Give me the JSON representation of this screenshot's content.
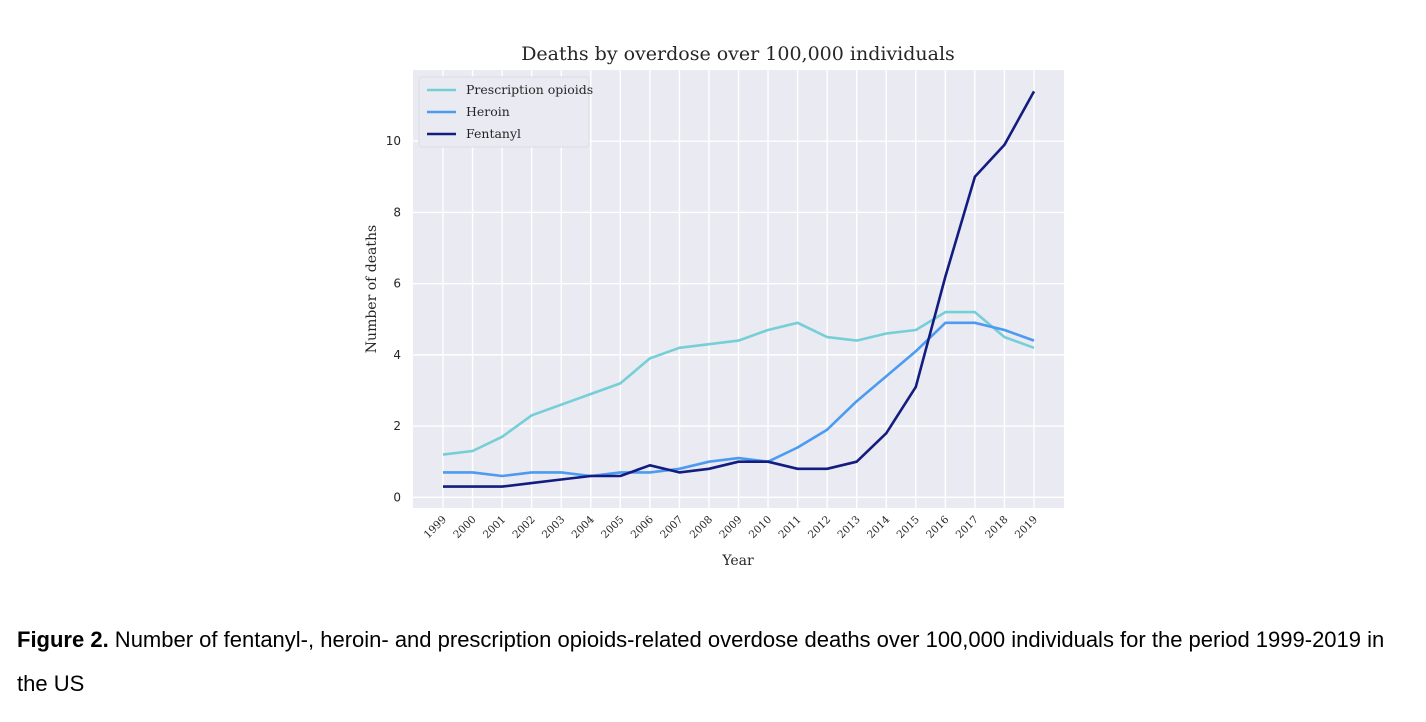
{
  "chart_data": {
    "type": "line",
    "title": "Deaths by overdose over 100,000 individuals",
    "xlabel": "Year",
    "ylabel": "Number of deaths",
    "x": [
      "1999",
      "2000",
      "2001",
      "2002",
      "2003",
      "2004",
      "2005",
      "2006",
      "2007",
      "2008",
      "2009",
      "2010",
      "2011",
      "2012",
      "2013",
      "2014",
      "2015",
      "2016",
      "2017",
      "2018",
      "2019"
    ],
    "yticks": [
      0,
      2,
      4,
      6,
      8,
      10
    ],
    "ylim": [
      -0.3,
      12.0
    ],
    "grid": true,
    "legend": "top-left",
    "series": [
      {
        "name": "Prescription opioids",
        "color": "#76cfd6",
        "values": [
          1.2,
          1.3,
          1.7,
          2.3,
          2.6,
          2.9,
          3.2,
          3.9,
          4.2,
          4.3,
          4.4,
          4.7,
          4.9,
          4.5,
          4.4,
          4.6,
          4.7,
          5.2,
          5.2,
          4.5,
          4.2
        ]
      },
      {
        "name": "Heroin",
        "color": "#4c9bf0",
        "values": [
          0.7,
          0.7,
          0.6,
          0.7,
          0.7,
          0.6,
          0.7,
          0.7,
          0.8,
          1.0,
          1.1,
          1.0,
          1.4,
          1.9,
          2.7,
          3.4,
          4.1,
          4.9,
          4.9,
          4.7,
          4.4
        ]
      },
      {
        "name": "Fentanyl",
        "color": "#131d80",
        "values": [
          0.3,
          0.3,
          0.3,
          0.4,
          0.5,
          0.6,
          0.6,
          0.9,
          0.7,
          0.8,
          1.0,
          1.0,
          0.8,
          0.8,
          1.0,
          1.8,
          3.1,
          6.2,
          9.0,
          9.9,
          11.4
        ]
      }
    ]
  },
  "caption": {
    "label": "Figure 2.",
    "text": " Number of fentanyl-, heroin- and prescription opioids-related overdose deaths over 100,000 individuals for the period 1999-2019 in the US"
  }
}
